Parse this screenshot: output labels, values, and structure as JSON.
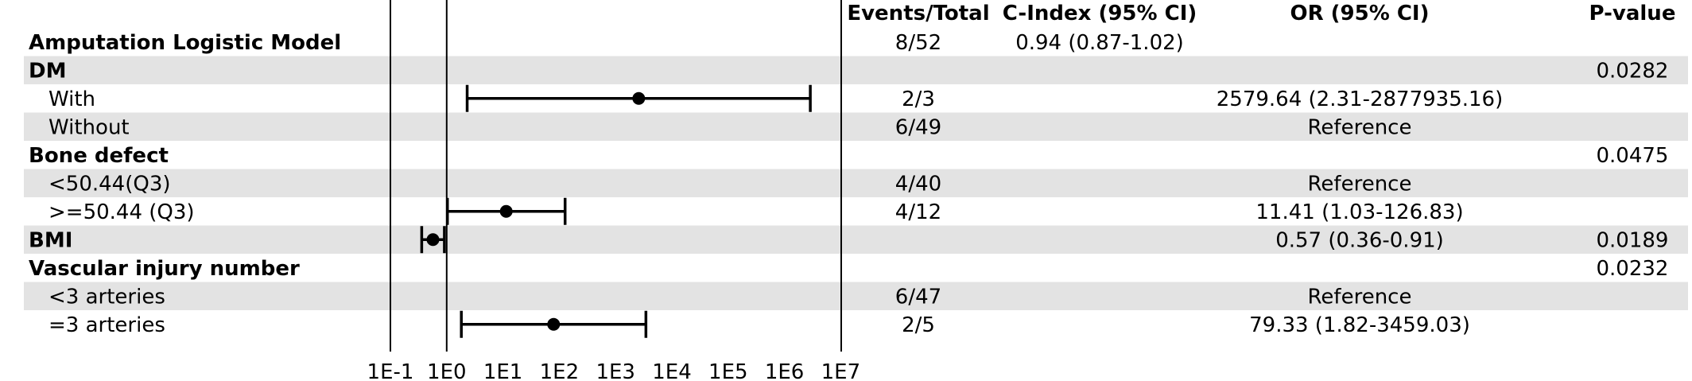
{
  "chart_data": {
    "type": "forest",
    "x_scale": "log",
    "xlim": [
      0.1,
      10000000
    ],
    "reference_line": 1,
    "x_tick_labels": [
      "1E-1",
      "1E0",
      "1E1",
      "1E2",
      "1E3",
      "1E4",
      "1E5",
      "1E6",
      "1E7"
    ],
    "x_tick_values": [
      0.1,
      1,
      10,
      100,
      1000,
      10000,
      100000,
      1000000,
      10000000
    ],
    "column_headers": {
      "events": "Events/Total",
      "cindex": "C-Index (95% CI)",
      "or": "OR (95% CI)",
      "pvalue": "P-value"
    },
    "rows": [
      {
        "label": "Amputation Logistic Model",
        "bold": true,
        "shaded": false,
        "indent": false,
        "events": "8/52",
        "cindex": "0.94 (0.87-1.02)",
        "or": "",
        "pvalue": ""
      },
      {
        "label": "DM",
        "bold": true,
        "shaded": true,
        "indent": false,
        "events": "",
        "cindex": "",
        "or": "",
        "pvalue": "0.0282"
      },
      {
        "label": "With",
        "bold": false,
        "shaded": false,
        "indent": true,
        "events": "2/3",
        "cindex": "",
        "or": "2579.64 (2.31-2877935.16)",
        "pvalue": "",
        "estimate": 2579.64,
        "lower": 2.31,
        "upper": 2877935.16
      },
      {
        "label": "Without",
        "bold": false,
        "shaded": true,
        "indent": true,
        "events": "6/49",
        "cindex": "",
        "or": "Reference",
        "pvalue": ""
      },
      {
        "label": "Bone defect",
        "bold": true,
        "shaded": false,
        "indent": false,
        "events": "",
        "cindex": "",
        "or": "",
        "pvalue": "0.0475"
      },
      {
        "label": "<50.44(Q3)",
        "bold": false,
        "shaded": true,
        "indent": true,
        "events": "4/40",
        "cindex": "",
        "or": "Reference",
        "pvalue": ""
      },
      {
        "label": ">=50.44 (Q3)",
        "bold": false,
        "shaded": false,
        "indent": true,
        "events": "4/12",
        "cindex": "",
        "or": "11.41 (1.03-126.83)",
        "pvalue": "",
        "estimate": 11.41,
        "lower": 1.03,
        "upper": 126.83
      },
      {
        "label": "BMI",
        "bold": true,
        "shaded": true,
        "indent": false,
        "events": "",
        "cindex": "",
        "or": "0.57 (0.36-0.91)",
        "pvalue": "0.0189",
        "estimate": 0.57,
        "lower": 0.36,
        "upper": 0.91
      },
      {
        "label": "Vascular injury number",
        "bold": true,
        "shaded": false,
        "indent": false,
        "events": "",
        "cindex": "",
        "or": "",
        "pvalue": "0.0232"
      },
      {
        "label": "<3 arteries",
        "bold": false,
        "shaded": true,
        "indent": true,
        "events": "6/47",
        "cindex": "",
        "or": "Reference",
        "pvalue": ""
      },
      {
        "label": "=3 arteries",
        "bold": false,
        "shaded": false,
        "indent": true,
        "events": "2/5",
        "cindex": "",
        "or": "79.33 (1.82-3459.03)",
        "pvalue": "",
        "estimate": 79.33,
        "lower": 1.82,
        "upper": 3459.03
      }
    ]
  }
}
